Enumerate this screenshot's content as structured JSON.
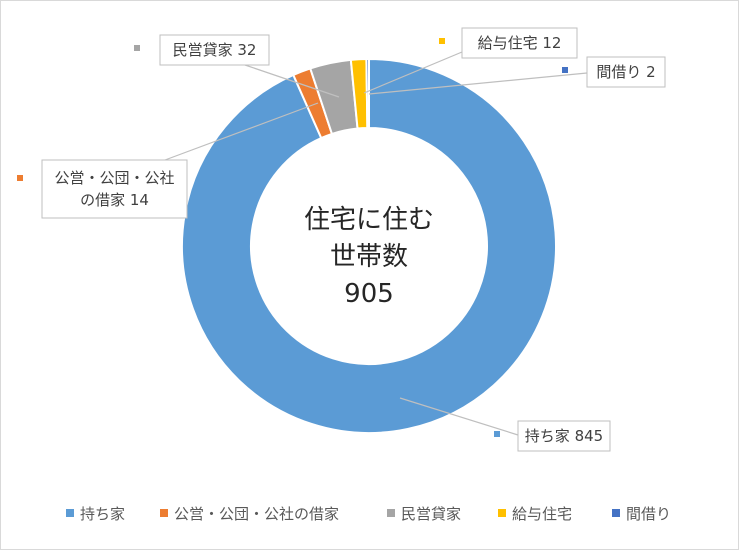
{
  "chart_data": {
    "type": "donut",
    "title": "",
    "center_label": [
      "住宅に住む",
      "世帯数",
      "905"
    ],
    "total": 905,
    "categories": [
      "持ち家",
      "公営・公団・公社の借家",
      "民営貸家",
      "給与住宅",
      "間借り"
    ],
    "values": [
      845,
      14,
      32,
      12,
      2
    ],
    "colors": [
      "#5b9bd5",
      "#ed7d31",
      "#a5a5a5",
      "#ffc000",
      "#4472c4"
    ],
    "data_labels": [
      {
        "lines": [
          "持ち家 845"
        ]
      },
      {
        "lines": [
          "公営・公団・公社",
          "の借家 14"
        ]
      },
      {
        "lines": [
          "民営貸家 32"
        ]
      },
      {
        "lines": [
          "給与住宅 12"
        ]
      },
      {
        "lines": [
          "間借り 2"
        ]
      }
    ],
    "legend": {
      "position": "bottom",
      "entries": [
        "持ち家",
        "公営・公団・公社の借家",
        "民営貸家",
        "給与住宅",
        "間借り"
      ]
    }
  }
}
